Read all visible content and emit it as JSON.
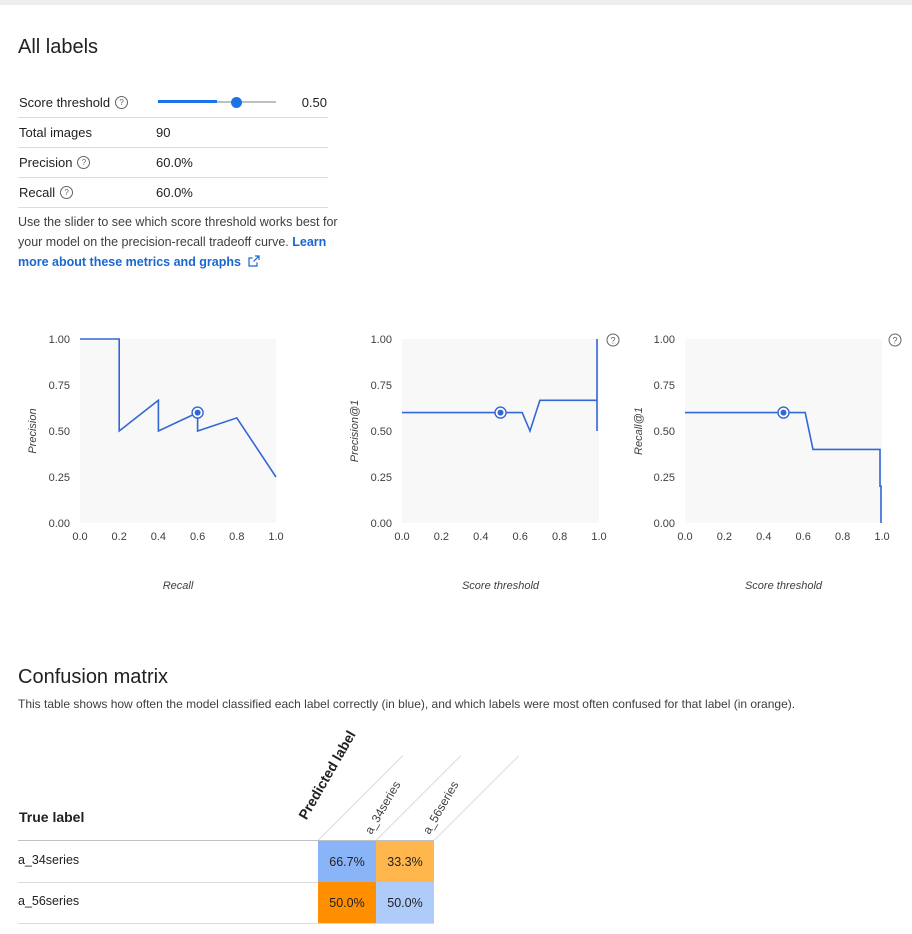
{
  "section_title": "All labels",
  "metrics": {
    "score_threshold_label": "Score threshold",
    "score_threshold_value": "0.50",
    "score_threshold_fraction": 0.5,
    "total_images_label": "Total images",
    "total_images_value": "90",
    "precision_label": "Precision",
    "precision_value": "60.0%",
    "recall_label": "Recall",
    "recall_value": "60.0%"
  },
  "description": {
    "text": "Use the slider to see which score threshold works best for your model on the precision-recall tradeoff curve.",
    "link": "Learn more about these metrics and graphs"
  },
  "colors": {
    "accent": "#1a73e8",
    "line": "#3367d6",
    "blue_cell": "#8ab4f8",
    "blue_cell_light": "#aecbfa",
    "orange_cell": "#ff8f00",
    "orange_cell_light": "#ffb74d"
  },
  "chart_data": [
    {
      "type": "line",
      "xlabel": "Recall",
      "ylabel": "Precision",
      "xlim": [
        0,
        1
      ],
      "ylim": [
        0,
        1
      ],
      "x_ticks": [
        "0.0",
        "0.2",
        "0.4",
        "0.6",
        "0.8",
        "1.0"
      ],
      "y_ticks": [
        "0.00",
        "0.25",
        "0.50",
        "0.75",
        "1.00"
      ],
      "help": false,
      "series": [
        {
          "x": [
            0.0,
            0.2,
            0.2,
            0.4,
            0.4,
            0.6,
            0.6,
            0.8,
            1.0
          ],
          "y": [
            1.0,
            1.0,
            0.5,
            0.667,
            0.5,
            0.6,
            0.5,
            0.571,
            0.25
          ]
        }
      ],
      "marker": {
        "x": 0.6,
        "y": 0.6
      }
    },
    {
      "type": "line",
      "xlabel": "Score threshold",
      "ylabel": "Precision@1",
      "xlim": [
        0,
        1
      ],
      "ylim": [
        0,
        1
      ],
      "x_ticks": [
        "0.0",
        "0.2",
        "0.4",
        "0.6",
        "0.8",
        "1.0"
      ],
      "y_ticks": [
        "0.00",
        "0.25",
        "0.50",
        "0.75",
        "1.00"
      ],
      "help": true,
      "series": [
        {
          "x": [
            0.0,
            0.6,
            0.61,
            0.65,
            0.7,
            0.99,
            0.99,
            0.99
          ],
          "y": [
            0.6,
            0.6,
            0.6,
            0.5,
            0.667,
            0.667,
            0.5,
            1.0
          ]
        }
      ],
      "marker": {
        "x": 0.5,
        "y": 0.6
      }
    },
    {
      "type": "line",
      "xlabel": "Score threshold",
      "ylabel": "Recall@1",
      "xlim": [
        0,
        1
      ],
      "ylim": [
        0,
        1
      ],
      "x_ticks": [
        "0.0",
        "0.2",
        "0.4",
        "0.6",
        "0.8",
        "1.0"
      ],
      "y_ticks": [
        "0.00",
        "0.25",
        "0.50",
        "0.75",
        "1.00"
      ],
      "help": true,
      "series": [
        {
          "x": [
            0.0,
            0.6,
            0.61,
            0.65,
            0.99,
            0.99,
            0.995,
            0.995
          ],
          "y": [
            0.6,
            0.6,
            0.6,
            0.4,
            0.4,
            0.2,
            0.2,
            0.0
          ]
        }
      ],
      "marker": {
        "x": 0.5,
        "y": 0.6
      }
    }
  ],
  "confusion": {
    "title": "Confusion matrix",
    "description": "This table shows how often the model classified each label correctly (in blue), and which labels were most often confused for that label (in orange).",
    "true_label_header": "True label",
    "predicted_label_header": "Predicted label",
    "columns": [
      "a_34series",
      "a_56series"
    ],
    "rows": [
      {
        "label": "a_34series",
        "cells": [
          {
            "value": "66.7%",
            "kind": "correct"
          },
          {
            "value": "33.3%",
            "kind": "confused"
          }
        ]
      },
      {
        "label": "a_56series",
        "cells": [
          {
            "value": "50.0%",
            "kind": "confused"
          },
          {
            "value": "50.0%",
            "kind": "correct"
          }
        ]
      }
    ]
  }
}
